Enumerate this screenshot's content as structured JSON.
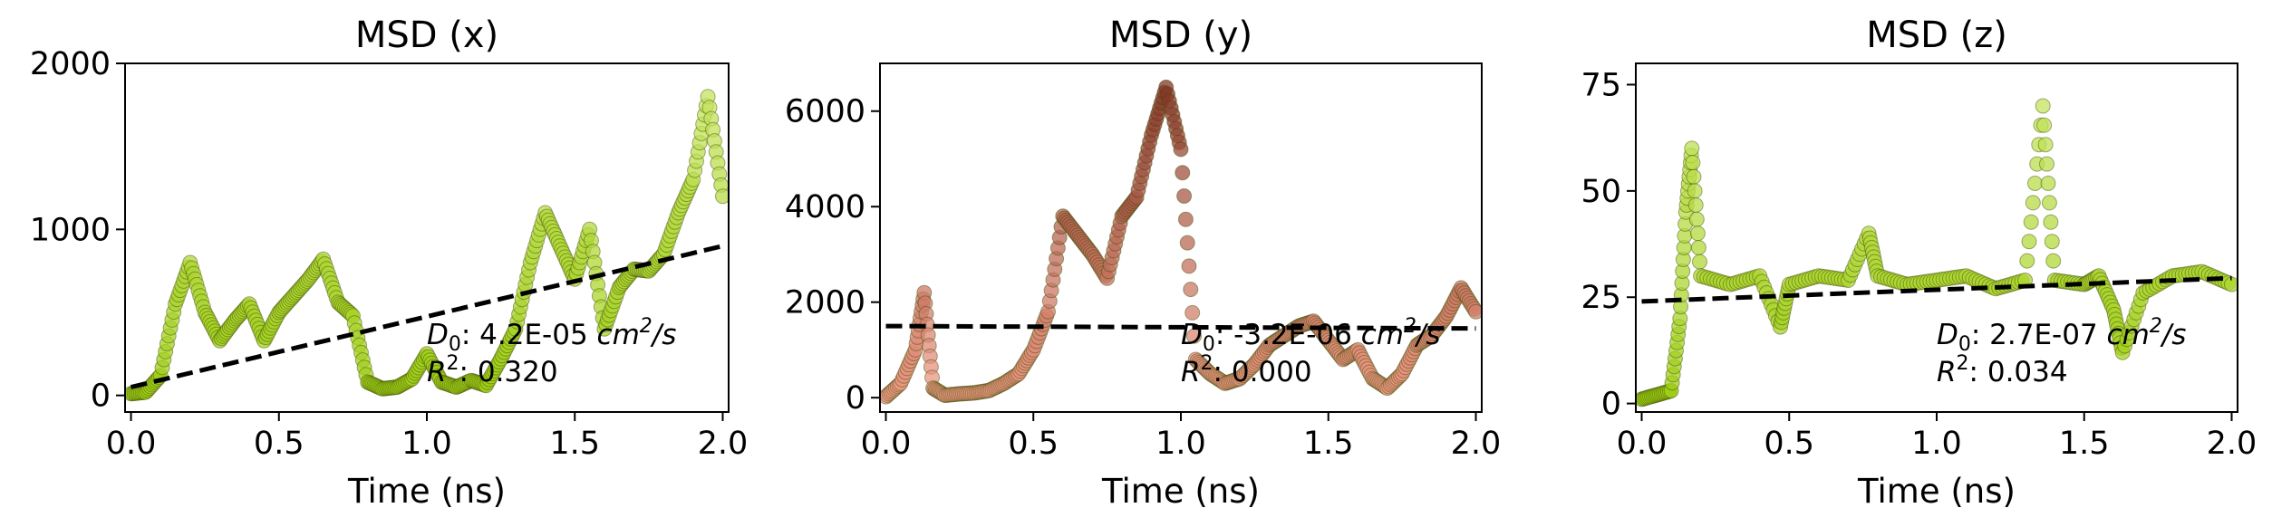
{
  "chart_data": [
    {
      "type": "scatter",
      "title": "MSD (x)",
      "xlabel": "Time (ns)",
      "ylabel": "",
      "xlim": [
        -0.02,
        2.02
      ],
      "ylim": [
        -100,
        2000
      ],
      "xticks": [
        "0.0",
        "0.5",
        "1.0",
        "1.5",
        "2.0"
      ],
      "xtick_values": [
        0,
        0.5,
        1,
        1.5,
        2
      ],
      "yticks": [
        "0",
        "1000",
        "2000"
      ],
      "ytick_values": [
        0,
        1000,
        2000
      ],
      "colors": {
        "light": "#e8f7a0",
        "dark": "#9ccc12"
      },
      "annotation": {
        "d0_label": "D",
        "d0_sub": "0",
        "d0_value": ": 4.2E-05 ",
        "d0_unit": "cm",
        "d0_unit_sup": "2",
        "d0_unit_tail": "/s",
        "r2_label": "R",
        "r2_sup": "2",
        "r2_value": ": 0.320"
      },
      "fit_line": {
        "x": [
          0,
          2
        ],
        "y": [
          50,
          900
        ]
      },
      "x": [
        0,
        0.05,
        0.1,
        0.15,
        0.2,
        0.25,
        0.3,
        0.35,
        0.4,
        0.45,
        0.5,
        0.55,
        0.6,
        0.65,
        0.7,
        0.75,
        0.8,
        0.85,
        0.9,
        0.95,
        1.0,
        1.05,
        1.1,
        1.15,
        1.2,
        1.25,
        1.3,
        1.35,
        1.4,
        1.45,
        1.5,
        1.55,
        1.6,
        1.65,
        1.7,
        1.75,
        1.8,
        1.85,
        1.9,
        1.95,
        2.0
      ],
      "y": [
        10,
        20,
        120,
        550,
        800,
        500,
        330,
        450,
        550,
        330,
        500,
        600,
        700,
        820,
        560,
        480,
        80,
        40,
        50,
        100,
        250,
        80,
        50,
        90,
        60,
        220,
        400,
        800,
        1100,
        900,
        700,
        1000,
        400,
        650,
        760,
        750,
        850,
        1100,
        1300,
        1800,
        1200
      ]
    },
    {
      "type": "scatter",
      "title": "MSD (y)",
      "xlabel": "Time (ns)",
      "ylabel": "",
      "xlim": [
        -0.02,
        2.02
      ],
      "ylim": [
        -300,
        7000
      ],
      "xticks": [
        "0.0",
        "0.5",
        "1.0",
        "1.5",
        "2.0"
      ],
      "xtick_values": [
        0,
        0.5,
        1,
        1.5,
        2
      ],
      "yticks": [
        "0",
        "2000",
        "4000",
        "6000"
      ],
      "ytick_values": [
        0,
        2000,
        4000,
        6000
      ],
      "colors": {
        "light": "#f4a08a",
        "dark": "#7a2e1e"
      },
      "annotation": {
        "d0_label": "D",
        "d0_sub": "0",
        "d0_value": ": -3.2E-06 ",
        "d0_unit": "cm",
        "d0_unit_sup": "2",
        "d0_unit_tail": "/s",
        "r2_label": "R",
        "r2_sup": "2",
        "r2_value": ": 0.000"
      },
      "fit_line": {
        "x": [
          0,
          2
        ],
        "y": [
          1500,
          1450
        ]
      },
      "x": [
        0,
        0.05,
        0.1,
        0.13,
        0.16,
        0.2,
        0.25,
        0.3,
        0.35,
        0.4,
        0.45,
        0.5,
        0.55,
        0.6,
        0.65,
        0.7,
        0.75,
        0.8,
        0.85,
        0.9,
        0.95,
        1.0,
        1.05,
        1.1,
        1.15,
        1.2,
        1.25,
        1.3,
        1.35,
        1.4,
        1.45,
        1.5,
        1.55,
        1.6,
        1.65,
        1.7,
        1.75,
        1.8,
        1.85,
        1.9,
        1.95,
        2.0
      ],
      "y": [
        20,
        300,
        1000,
        2200,
        200,
        50,
        80,
        100,
        150,
        300,
        500,
        1000,
        1800,
        3800,
        3400,
        3000,
        2500,
        3800,
        4200,
        5500,
        6500,
        5200,
        800,
        500,
        300,
        400,
        700,
        1100,
        1300,
        1500,
        1600,
        1200,
        800,
        1000,
        400,
        200,
        500,
        1100,
        1300,
        1700,
        2300,
        1800
      ]
    },
    {
      "type": "scatter",
      "title": "MSD (z)",
      "xlabel": "Time (ns)",
      "ylabel": "",
      "xlim": [
        -0.02,
        2.02
      ],
      "ylim": [
        -2,
        80
      ],
      "xticks": [
        "0.0",
        "0.5",
        "1.0",
        "1.5",
        "2.0"
      ],
      "xtick_values": [
        0,
        0.5,
        1,
        1.5,
        2
      ],
      "yticks": [
        "0",
        "25",
        "50",
        "75"
      ],
      "ytick_values": [
        0,
        25,
        50,
        75
      ],
      "colors": {
        "light": "#e8f7a0",
        "dark": "#9ccc12"
      },
      "annotation": {
        "d0_label": "D",
        "d0_sub": "0",
        "d0_value": ": 2.7E-07 ",
        "d0_unit": "cm",
        "d0_unit_sup": "2",
        "d0_unit_tail": "/s",
        "r2_label": "R",
        "r2_sup": "2",
        "r2_value": ": 0.034"
      },
      "fit_line": {
        "x": [
          0,
          2
        ],
        "y": [
          24,
          29.5
        ]
      },
      "x": [
        0,
        0.05,
        0.1,
        0.13,
        0.15,
        0.17,
        0.2,
        0.3,
        0.4,
        0.47,
        0.5,
        0.6,
        0.7,
        0.77,
        0.8,
        0.9,
        1.0,
        1.1,
        1.2,
        1.3,
        1.36,
        1.4,
        1.5,
        1.55,
        1.6,
        1.63,
        1.7,
        1.8,
        1.9,
        2.0
      ],
      "y": [
        1,
        2,
        3,
        20,
        45,
        60,
        30,
        28,
        30,
        18,
        28,
        30,
        29,
        40,
        30,
        28,
        29,
        30,
        27,
        29,
        70,
        29,
        28,
        30,
        22,
        12,
        26,
        30,
        31,
        28
      ]
    }
  ]
}
